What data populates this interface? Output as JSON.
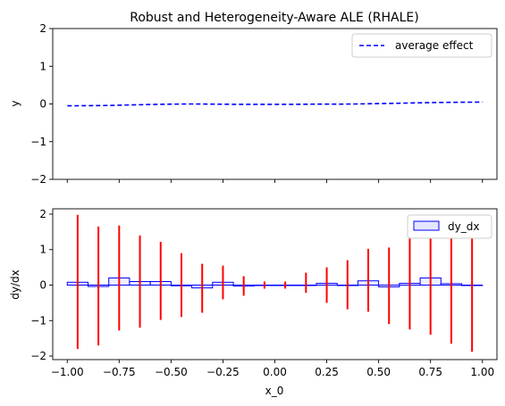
{
  "chart_data": [
    {
      "type": "line",
      "title": "Robust and Heterogeneity-Aware ALE (RHALE)",
      "xlabel": "",
      "ylabel": "y",
      "xlim": [
        -1.07,
        1.07
      ],
      "ylim": [
        -2,
        2
      ],
      "x_ticks": [
        -1.0,
        -0.75,
        -0.5,
        -0.25,
        0.0,
        0.25,
        0.5,
        0.75,
        1.0
      ],
      "y_ticks": [
        -2,
        -1,
        0,
        1,
        2
      ],
      "y_tick_labels": [
        "−2",
        "−1",
        "0",
        "1",
        "2"
      ],
      "show_x_tick_labels": false,
      "grid": false,
      "legend": "top-right",
      "series": [
        {
          "name": "average effect",
          "color": "#0000ff",
          "style": "dashed",
          "x": [
            -1.0,
            -0.9,
            -0.8,
            -0.7,
            -0.6,
            -0.5,
            -0.4,
            -0.3,
            -0.2,
            -0.1,
            0.0,
            0.1,
            0.2,
            0.3,
            0.4,
            0.5,
            0.6,
            0.7,
            0.8,
            0.9,
            1.0
          ],
          "y": [
            -0.05,
            -0.045,
            -0.04,
            -0.025,
            -0.015,
            -0.005,
            0.0,
            -0.005,
            -0.01,
            -0.01,
            -0.01,
            -0.01,
            -0.005,
            -0.005,
            0.0,
            0.01,
            0.02,
            0.03,
            0.04,
            0.045,
            0.05
          ]
        }
      ]
    },
    {
      "type": "bar",
      "title": "",
      "xlabel": "x_0",
      "ylabel": "dy/dx",
      "xlim": [
        -1.07,
        1.07
      ],
      "ylim": [
        -2.1,
        2.15
      ],
      "x_ticks": [
        -1.0,
        -0.75,
        -0.5,
        -0.25,
        0.0,
        0.25,
        0.5,
        0.75,
        1.0
      ],
      "x_tick_labels": [
        "−1.00",
        "−0.75",
        "−0.50",
        "−0.25",
        "0.00",
        "0.25",
        "0.50",
        "0.75",
        "1.00"
      ],
      "y_ticks": [
        -2,
        -1,
        0,
        1,
        2
      ],
      "y_tick_labels": [
        "−2",
        "−1",
        "0",
        "1",
        "2"
      ],
      "grid": false,
      "legend": "top-right",
      "bin_edges": [
        -1.0,
        -0.9,
        -0.8,
        -0.7,
        -0.6,
        -0.5,
        -0.4,
        -0.3,
        -0.2,
        -0.1,
        0.0,
        0.1,
        0.2,
        0.3,
        0.4,
        0.5,
        0.6,
        0.7,
        0.8,
        0.9,
        1.0
      ],
      "bar_series": {
        "name": "dy_dx",
        "color": "#0000ff",
        "values": [
          0.08,
          -0.04,
          0.2,
          0.1,
          0.1,
          -0.02,
          -0.08,
          0.08,
          -0.03,
          0.0,
          0.0,
          0.0,
          0.05,
          0.0,
          0.12,
          -0.05,
          0.05,
          0.2,
          0.04,
          0.0
        ]
      },
      "error_bars": {
        "color": "#ff0000",
        "x": [
          -0.95,
          -0.85,
          -0.75,
          -0.65,
          -0.55,
          -0.45,
          -0.35,
          -0.25,
          -0.15,
          -0.05,
          0.05,
          0.15,
          0.25,
          0.35,
          0.45,
          0.55,
          0.65,
          0.75,
          0.85,
          0.95
        ],
        "low": [
          -1.8,
          -1.7,
          -1.28,
          -1.2,
          -0.98,
          -0.9,
          -0.78,
          -0.4,
          -0.3,
          -0.1,
          -0.1,
          -0.22,
          -0.5,
          -0.68,
          -0.75,
          -1.1,
          -1.25,
          -1.4,
          -1.65,
          -1.88
        ],
        "high": [
          1.98,
          1.65,
          1.68,
          1.4,
          1.22,
          0.9,
          0.6,
          0.55,
          0.25,
          0.1,
          0.1,
          0.35,
          0.5,
          0.7,
          1.02,
          1.06,
          1.36,
          1.42,
          1.78,
          1.92
        ]
      }
    }
  ]
}
